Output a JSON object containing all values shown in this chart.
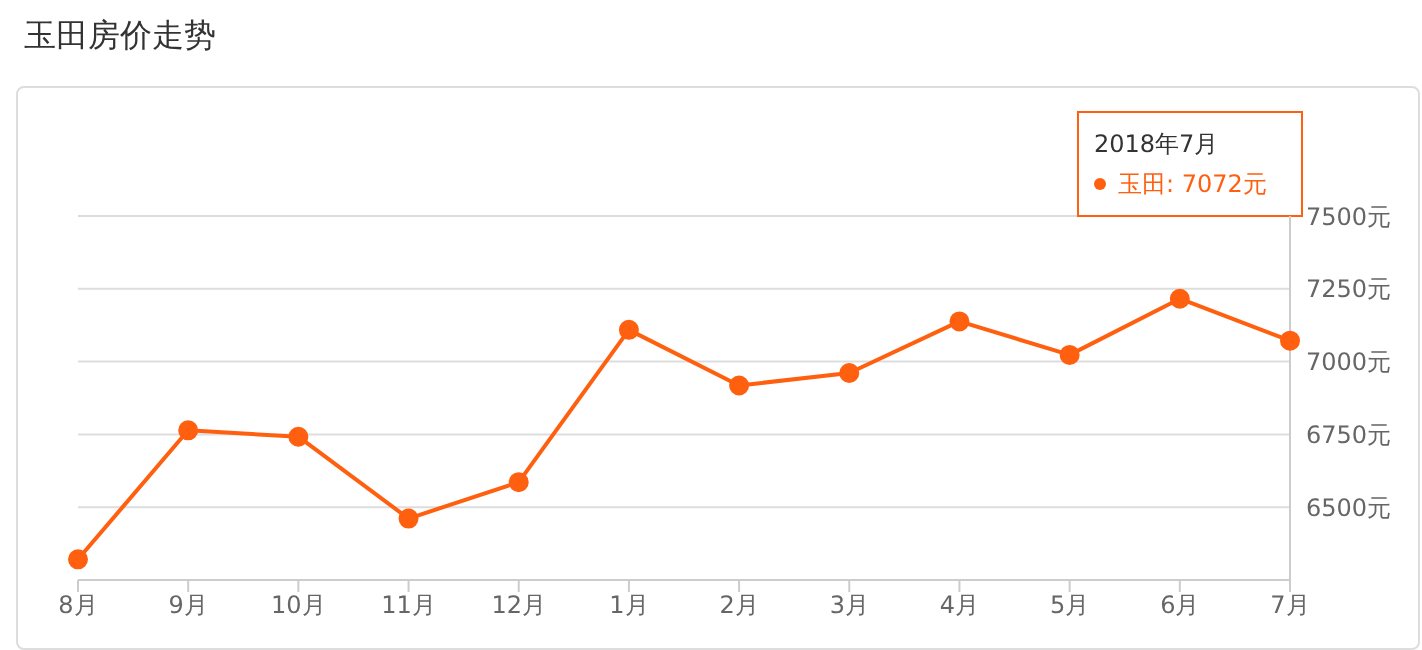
{
  "chart_data": {
    "type": "line",
    "title": "玉田房价走势",
    "categories": [
      "8月",
      "9月",
      "10月",
      "11月",
      "12月",
      "1月",
      "2月",
      "3月",
      "4月",
      "5月",
      "6月",
      "7月"
    ],
    "series": [
      {
        "color": "#ff6010",
        "values": [
          6321,
          6764,
          6742,
          6461,
          6586,
          7109,
          6918,
          6961,
          7138,
          7023,
          7216,
          7072
        ]
      }
    ],
    "ylim": [
      6250,
      7500
    ],
    "yticks": [
      {
        "value": 6500,
        "label": "6500元"
      },
      {
        "value": 6750,
        "label": "6750元"
      },
      {
        "value": 7000,
        "label": "7000元"
      },
      {
        "value": 7250,
        "label": "7250元"
      },
      {
        "value": 7500,
        "label": "7500元"
      }
    ],
    "grid": "y",
    "marker": "circle",
    "line_style": "solid",
    "annotations": [
      "2018年7月",
      "玉田: 7072元"
    ]
  }
}
